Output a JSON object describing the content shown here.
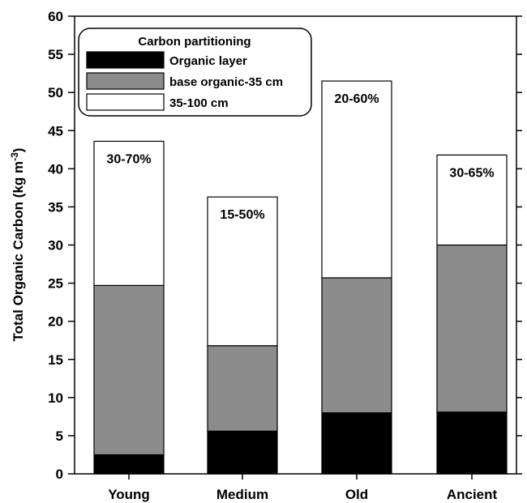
{
  "chart_data": {
    "type": "bar",
    "stacked": true,
    "categories": [
      "Young",
      "Medium",
      "Old",
      "Ancient"
    ],
    "series": [
      {
        "name": "Organic layer",
        "values": [
          2.5,
          5.6,
          8.0,
          8.1
        ],
        "color": "#000000"
      },
      {
        "name": "base organic-35 cm",
        "values": [
          22.2,
          11.2,
          17.7,
          21.9
        ],
        "color": "#8c8c8c"
      },
      {
        "name": "35-100 cm",
        "values": [
          18.9,
          19.5,
          25.8,
          11.8
        ],
        "color": "#ffffff"
      }
    ],
    "annotations": [
      "30-70%",
      "15-50%",
      "20-60%",
      "30-65%"
    ],
    "ylabel_main": "Total Organic Carbon (kg m",
    "ylabel_sup": "-3",
    "ylabel_end": ")",
    "xlabel": "",
    "ylim": [
      0,
      60
    ],
    "yticks": [
      0,
      5,
      10,
      15,
      20,
      25,
      30,
      35,
      40,
      45,
      50,
      55,
      60
    ],
    "legend_title": "Carbon partitioning",
    "legend_position": "top-left",
    "grid": false
  }
}
